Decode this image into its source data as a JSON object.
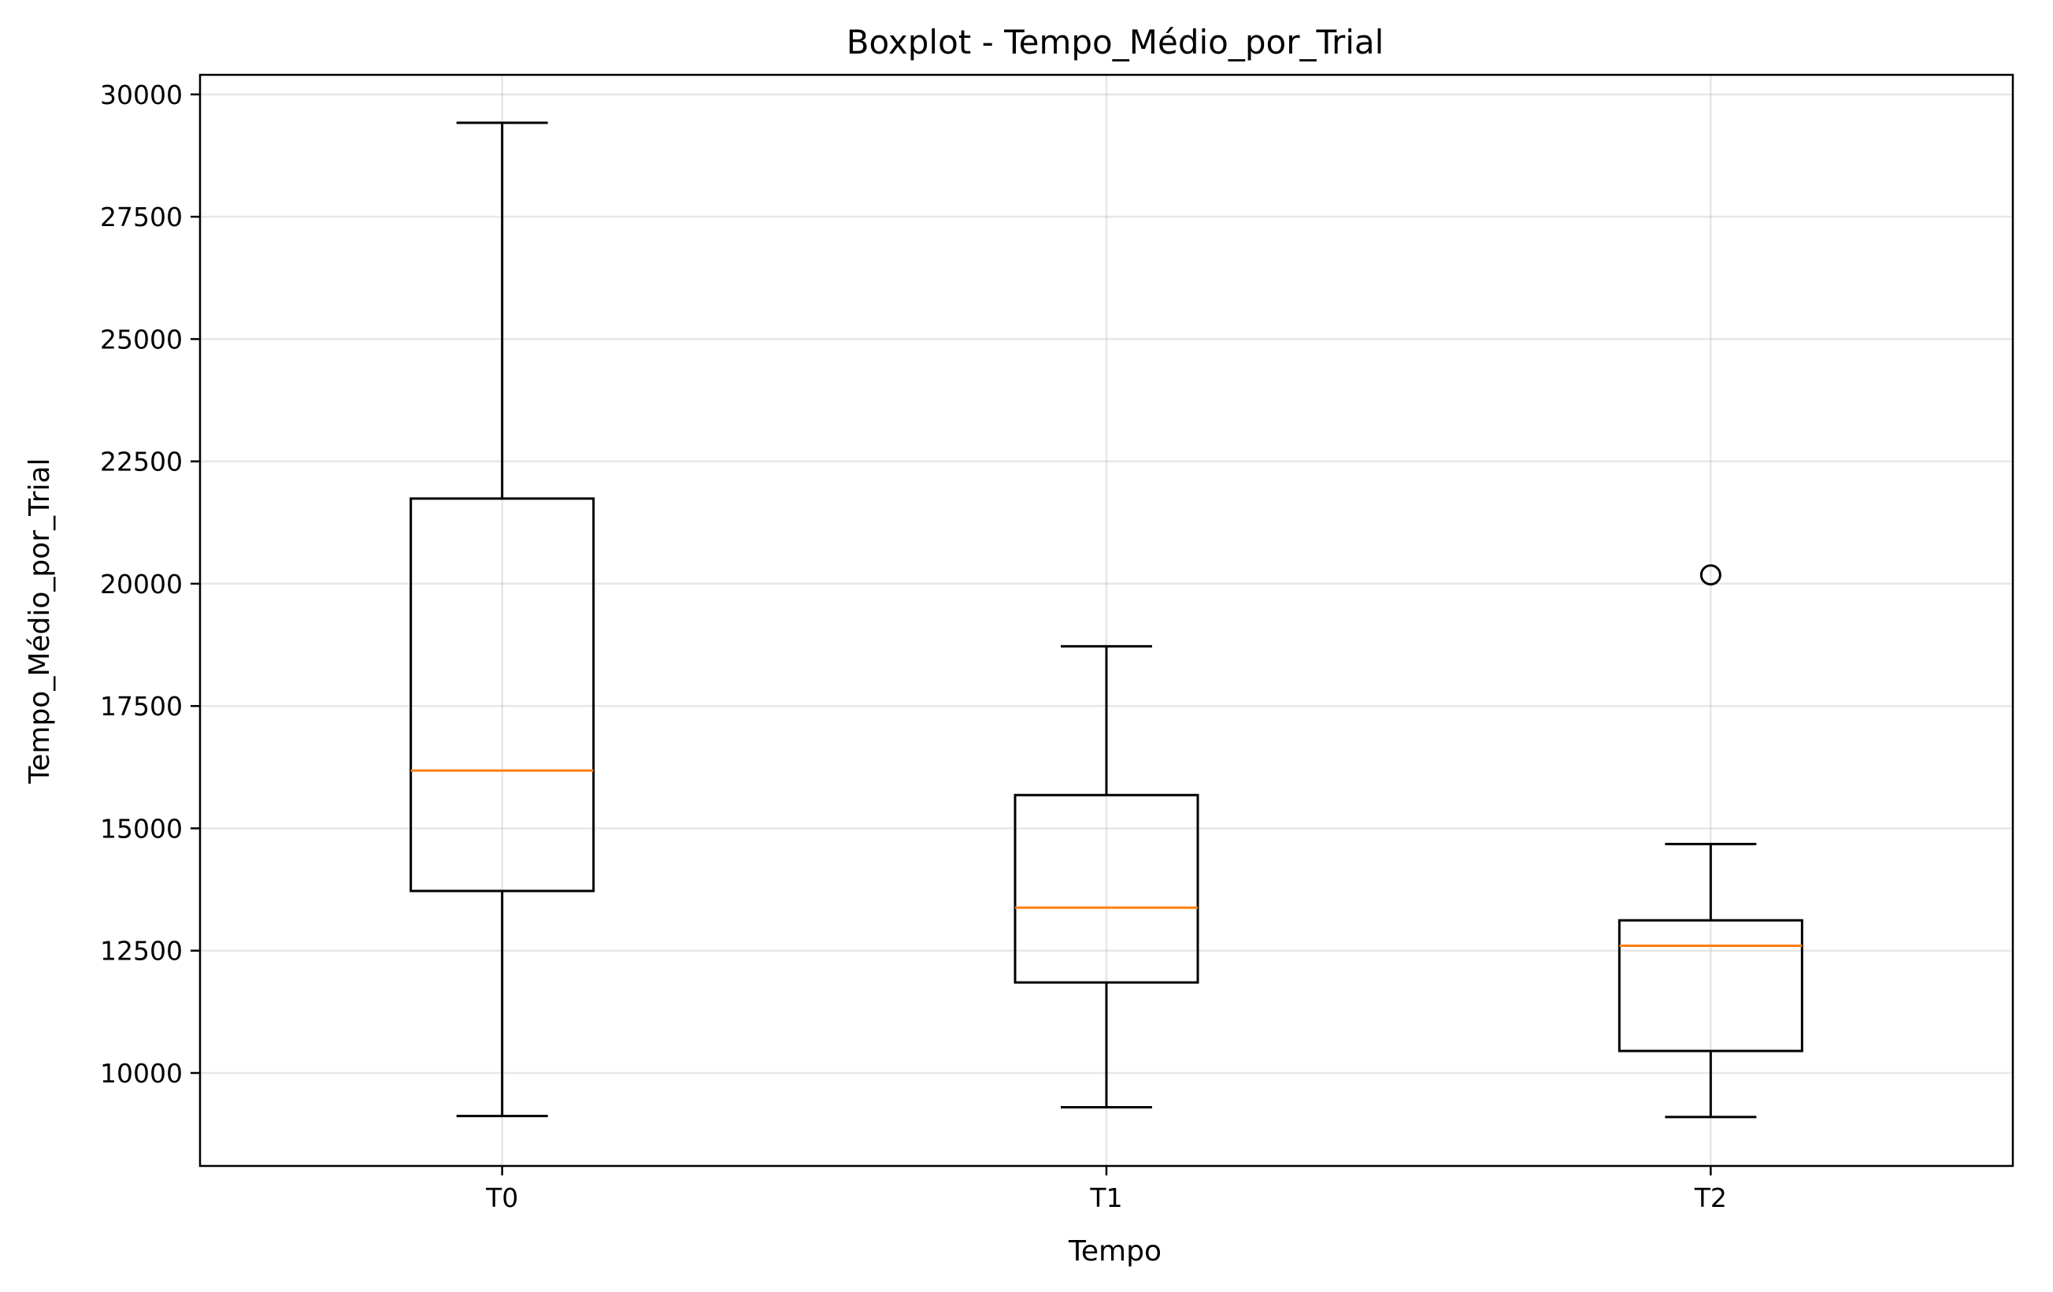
{
  "chart_data": {
    "type": "boxplot",
    "title": "Boxplot - Tempo_Médio_por_Trial",
    "xlabel": "Tempo",
    "ylabel": "Tempo_Médio_por_Trial",
    "categories": [
      "T0",
      "T1",
      "T2"
    ],
    "ylim": [
      8100,
      30400
    ],
    "yticks": [
      10000,
      12500,
      15000,
      17500,
      20000,
      22500,
      25000,
      27500,
      30000
    ],
    "grid": true,
    "boxes": [
      {
        "label": "T0",
        "whisker_low": 9120,
        "q1": 13720,
        "median": 16180,
        "q3": 21740,
        "whisker_high": 29420,
        "outliers": []
      },
      {
        "label": "T1",
        "whisker_low": 9300,
        "q1": 11850,
        "median": 13380,
        "q3": 15680,
        "whisker_high": 18720,
        "outliers": []
      },
      {
        "label": "T2",
        "whisker_low": 9100,
        "q1": 10450,
        "median": 12600,
        "q3": 13120,
        "whisker_high": 14680,
        "outliers": [
          20180
        ]
      }
    ],
    "colors": {
      "box": "#000000",
      "median": "#ff7f0e",
      "grid": "#b0b0b0"
    }
  }
}
